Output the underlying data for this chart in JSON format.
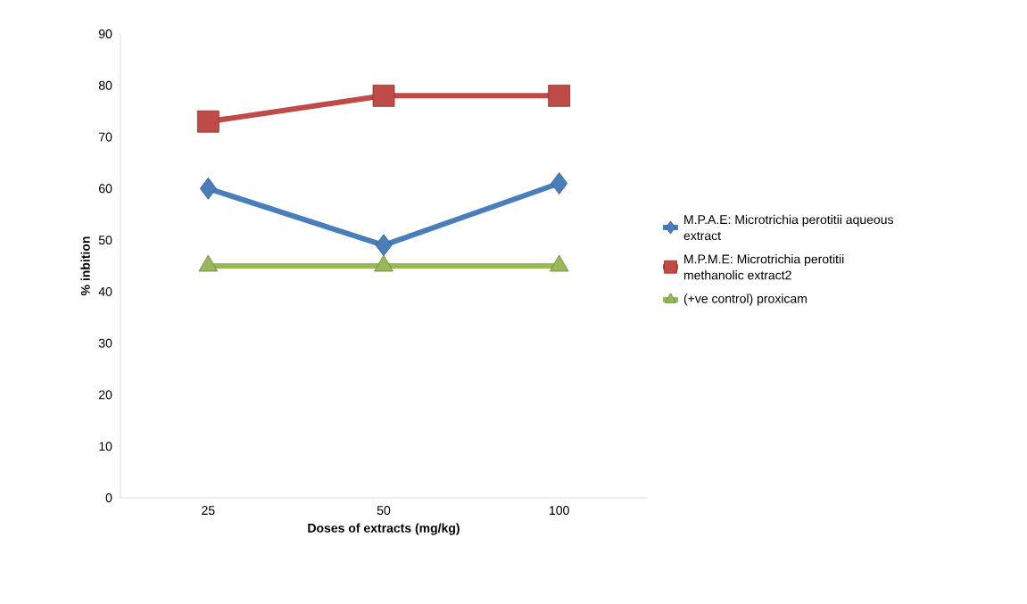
{
  "chart_data": {
    "type": "line",
    "xlabel": "Doses of extracts (mg/kg)",
    "ylabel": "% inbition",
    "categories": [
      "25",
      "50",
      "100"
    ],
    "series": [
      {
        "name": "M.P.A.E: Microtrichia perotitii aqueous extract",
        "color": "#4a7ebb",
        "marker": "diamond",
        "values": [
          60,
          49,
          61
        ]
      },
      {
        "name": "M.P.M.E: Microtrichia perotitii methanolic extract2",
        "color": "#be4b48",
        "marker": "square",
        "values": [
          73,
          78,
          78
        ]
      },
      {
        "name": "(+ve control) proxicam",
        "color": "#98b954",
        "marker": "triangle",
        "values": [
          45,
          45,
          45
        ]
      }
    ],
    "ylim": [
      0,
      90
    ],
    "yticks": [
      0,
      10,
      20,
      30,
      40,
      50,
      60,
      70,
      80,
      90
    ],
    "grid": false,
    "legend": "right",
    "line_style": "solid"
  }
}
